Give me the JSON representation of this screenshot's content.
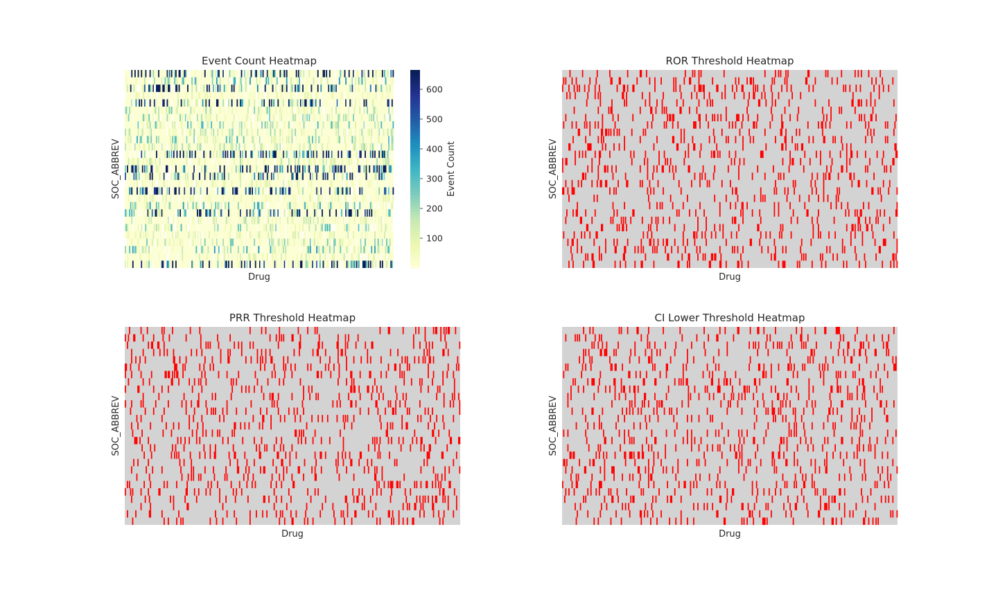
{
  "chart_data": [
    {
      "type": "heatmap",
      "title": "Event Count Heatmap",
      "xlabel": "Drug",
      "ylabel": "SOC_ABBREV",
      "colormap": "YlGnBu",
      "colorbar": {
        "label": "Event Count",
        "ticks": [
          100,
          200,
          300,
          400,
          500,
          600
        ],
        "range": [
          0,
          665
        ]
      },
      "missing_color": "#ffffff",
      "grid": false,
      "rows": 27,
      "cols": 250
    },
    {
      "type": "heatmap",
      "title": "ROR Threshold Heatmap",
      "xlabel": "Drug",
      "ylabel": "SOC_ABBREV",
      "colors": {
        "below": "#d3d3d3",
        "above": "#ff0000"
      },
      "grid": false,
      "rows": 27,
      "cols": 320
    },
    {
      "type": "heatmap",
      "title": "PRR Threshold Heatmap",
      "xlabel": "Drug",
      "ylabel": "SOC_ABBREV",
      "colors": {
        "below": "#d3d3d3",
        "above": "#ff0000"
      },
      "grid": false,
      "rows": 27,
      "cols": 320
    },
    {
      "type": "heatmap",
      "title": "CI Lower Threshold Heatmap",
      "xlabel": "Drug",
      "ylabel": "SOC_ABBREV",
      "colors": {
        "below": "#d3d3d3",
        "above": "#ff0000"
      },
      "grid": false,
      "rows": 27,
      "cols": 320
    }
  ]
}
